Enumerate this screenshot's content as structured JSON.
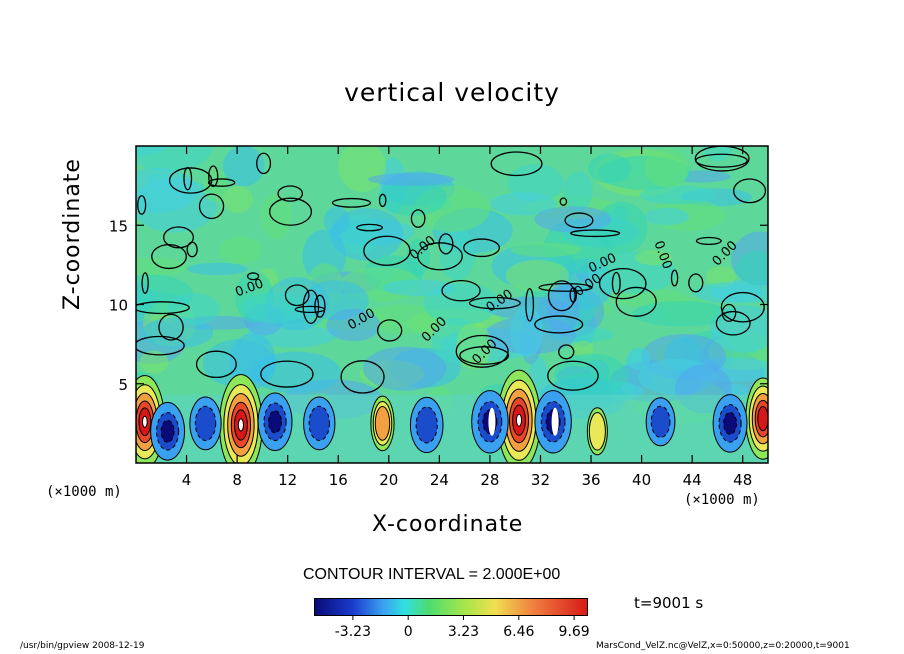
{
  "chart_data": {
    "type": "heatmap",
    "title": "vertical velocity",
    "xlabel": "X-coordinate",
    "ylabel": "Z-coordinate",
    "x_unit": "(×1000 m)",
    "x_ticks": [
      "4",
      "8",
      "12",
      "16",
      "20",
      "24",
      "28",
      "32",
      "36",
      "40",
      "44",
      "48"
    ],
    "y_ticks": [
      "5",
      "10",
      "15"
    ],
    "xlim": [
      0,
      50
    ],
    "ylim": [
      0,
      20
    ],
    "contour_label": "0.00",
    "contour_interval": "CONTOUR INTERVAL = 2.000E+00",
    "colorbar_ticks": [
      "-3.23",
      "0",
      "3.23",
      "6.46",
      "9.69"
    ],
    "time_label": "t=9001 s",
    "updrafts": [
      {
        "x": 0.7,
        "z": 2.6,
        "peak": 8.5
      },
      {
        "x": 8.3,
        "z": 2.4,
        "peak": 9.6
      },
      {
        "x": 19.5,
        "z": 2.5,
        "peak": 3.5
      },
      {
        "x": 30.3,
        "z": 2.7,
        "peak": 9.5
      },
      {
        "x": 36.5,
        "z": 2.0,
        "peak": 2.5
      },
      {
        "x": 49.6,
        "z": 2.8,
        "peak": 7.0
      }
    ],
    "downdrafts": [
      {
        "x": 2.5,
        "z": 2.0,
        "peak": -2.8
      },
      {
        "x": 5.5,
        "z": 2.5,
        "peak": -2.4
      },
      {
        "x": 11.0,
        "z": 2.6,
        "peak": -2.8
      },
      {
        "x": 14.5,
        "z": 2.5,
        "peak": -2.4
      },
      {
        "x": 23.0,
        "z": 2.4,
        "peak": -2.6
      },
      {
        "x": 28.0,
        "z": 2.6,
        "peak": -3.2
      },
      {
        "x": 33.0,
        "z": 2.6,
        "peak": -3.2
      },
      {
        "x": 41.5,
        "z": 2.6,
        "peak": -2.0
      },
      {
        "x": 47.0,
        "z": 2.5,
        "peak": -2.8
      }
    ]
  },
  "footer": {
    "left": "/usr/bin/gpview  2008-12-19",
    "right": "MarsCond_VelZ.nc@VelZ,x=0:50000,z=0:20000,t=9001"
  }
}
